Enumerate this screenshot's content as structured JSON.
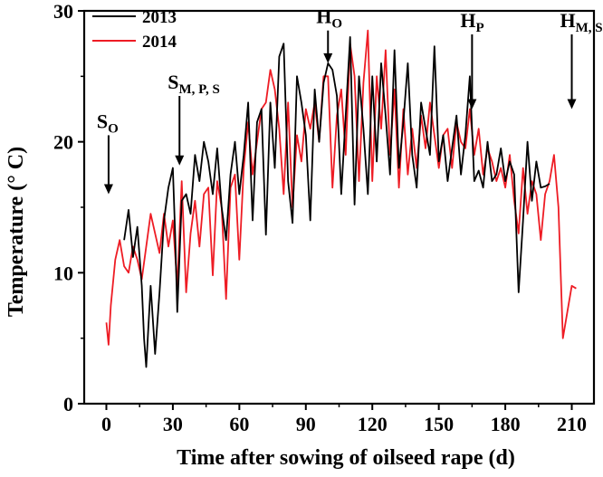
{
  "chart_data": {
    "type": "line",
    "xlabel": "Time after sowing of oilseed rape (d)",
    "ylabel": "Temperature (° C)",
    "xlim": [
      -10,
      220
    ],
    "ylim": [
      0,
      30
    ],
    "xticks": [
      "0",
      "30",
      "60",
      "90",
      "120",
      "150",
      "180",
      "210"
    ],
    "yticks": [
      "0",
      "10",
      "20",
      "30"
    ],
    "legend_position": "top-left",
    "series": [
      {
        "name": "2013",
        "color": "#000000",
        "x": [
          8,
          10,
          12,
          14,
          16,
          17,
          18,
          19,
          20,
          22,
          24,
          26,
          28,
          30,
          31,
          32,
          34,
          36,
          38,
          40,
          42,
          44,
          46,
          48,
          50,
          52,
          54,
          56,
          58,
          60,
          62,
          64,
          66,
          68,
          70,
          72,
          74,
          76,
          78,
          80,
          82,
          84,
          86,
          88,
          90,
          92,
          94,
          96,
          98,
          100,
          102,
          104,
          106,
          108,
          110,
          112,
          114,
          116,
          118,
          120,
          122,
          124,
          126,
          128,
          130,
          132,
          134,
          136,
          138,
          140,
          142,
          144,
          146,
          148,
          150,
          152,
          154,
          156,
          158,
          160,
          162,
          164,
          166,
          168,
          170,
          172,
          174,
          176,
          178,
          180,
          182,
          184,
          186,
          188,
          190,
          192,
          194,
          196,
          198,
          200
        ],
        "y": [
          12.5,
          14.8,
          11.2,
          13.5,
          9.0,
          5.0,
          2.8,
          6.0,
          9.0,
          3.8,
          8.5,
          14.0,
          16.5,
          18.0,
          13.0,
          7.0,
          15.5,
          16.0,
          14.5,
          19.0,
          17.0,
          20.0,
          18.5,
          16.0,
          19.5,
          15.0,
          12.5,
          17.5,
          20.0,
          16.0,
          19.0,
          23.0,
          14.0,
          21.5,
          22.5,
          12.9,
          23.0,
          18.0,
          26.5,
          27.5,
          17.0,
          13.8,
          25.0,
          23.0,
          20.5,
          14.0,
          24.0,
          20.0,
          24.5,
          26.0,
          25.5,
          23.5,
          16.0,
          22.0,
          28.0,
          15.2,
          25.0,
          21.0,
          16.0,
          25.0,
          18.5,
          26.0,
          22.0,
          17.5,
          27.0,
          18.0,
          21.5,
          26.0,
          19.0,
          16.5,
          23.0,
          21.0,
          19.0,
          27.3,
          18.5,
          20.5,
          17.0,
          19.5,
          22.0,
          17.5,
          20.5,
          25.0,
          17.0,
          17.8,
          16.5,
          20.0,
          17.0,
          17.5,
          19.5,
          17.0,
          18.5,
          17.5,
          8.5,
          14.0,
          20.0,
          15.5,
          18.5,
          16.5,
          16.6,
          16.8
        ]
      },
      {
        "name": "2014",
        "color": "#ee1c24",
        "x": [
          0,
          1,
          2,
          4,
          6,
          8,
          10,
          12,
          14,
          16,
          18,
          20,
          22,
          24,
          26,
          28,
          30,
          32,
          34,
          36,
          38,
          40,
          42,
          44,
          46,
          48,
          50,
          52,
          54,
          56,
          58,
          60,
          62,
          64,
          66,
          68,
          70,
          72,
          74,
          76,
          78,
          80,
          82,
          84,
          86,
          88,
          90,
          92,
          94,
          96,
          98,
          100,
          102,
          104,
          106,
          108,
          110,
          112,
          114,
          116,
          118,
          120,
          122,
          124,
          126,
          128,
          130,
          132,
          134,
          136,
          138,
          140,
          142,
          144,
          146,
          148,
          150,
          152,
          154,
          156,
          158,
          160,
          162,
          164,
          166,
          168,
          170,
          172,
          174,
          176,
          178,
          180,
          182,
          184,
          186,
          188,
          190,
          192,
          194,
          196,
          198,
          200,
          202,
          204,
          206,
          208,
          210,
          212
        ],
        "y": [
          6.2,
          4.5,
          7.5,
          11.0,
          12.5,
          10.5,
          10.0,
          12.0,
          11.0,
          9.5,
          12.0,
          14.5,
          13.0,
          11.5,
          14.5,
          12.0,
          14.0,
          9.0,
          17.0,
          8.5,
          13.0,
          15.5,
          12.0,
          16.0,
          16.5,
          9.8,
          17.0,
          15.0,
          8.0,
          16.5,
          17.5,
          11.0,
          18.0,
          21.5,
          17.5,
          20.0,
          22.5,
          23.0,
          25.5,
          24.0,
          21.0,
          16.0,
          23.0,
          15.0,
          20.5,
          18.5,
          22.5,
          21.0,
          23.0,
          20.0,
          25.0,
          25.0,
          16.5,
          22.0,
          24.0,
          19.0,
          27.5,
          25.0,
          17.0,
          24.5,
          28.5,
          17.0,
          25.0,
          21.0,
          27.0,
          19.0,
          24.0,
          16.5,
          22.5,
          17.5,
          21.0,
          18.0,
          22.0,
          19.5,
          23.0,
          20.5,
          18.0,
          20.5,
          21.0,
          18.0,
          21.5,
          20.0,
          19.5,
          22.5,
          19.0,
          21.0,
          17.5,
          19.5,
          18.5,
          17.0,
          18.0,
          16.5,
          19.0,
          15.5,
          13.0,
          18.0,
          14.5,
          17.0,
          16.0,
          12.5,
          16.0,
          17.0,
          19.0,
          15.0,
          5.0,
          7.0,
          9.0,
          8.8
        ]
      }
    ],
    "annotations": [
      {
        "main": "S",
        "sub": "O",
        "x": 1,
        "y_start": 20.5,
        "y_end": 16.0
      },
      {
        "main": "S",
        "sub": "M, P, S",
        "x": 33,
        "y_start": 23.5,
        "y_end": 18.2
      },
      {
        "main": "H",
        "sub": "O",
        "x": 100,
        "y_start": 28.5,
        "y_end": 26.0
      },
      {
        "main": "H",
        "sub": "P",
        "x": 165,
        "y_start": 28.2,
        "y_end": 22.5
      },
      {
        "main": "H",
        "sub": "M, S",
        "x": 210,
        "y_start": 28.2,
        "y_end": 22.5
      }
    ]
  }
}
